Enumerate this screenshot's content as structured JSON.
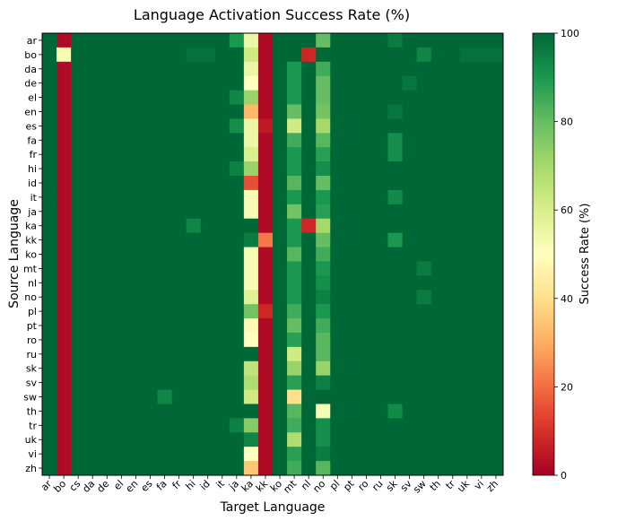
{
  "chart_data": {
    "type": "heatmap",
    "title": "Language Activation Success Rate (%)",
    "xlabel": "Target Language",
    "ylabel": "Source Language",
    "colorbar_label": "Success Rate (%)",
    "colorbar_ticks": [
      0,
      20,
      40,
      60,
      80,
      100
    ],
    "value_range": [
      0,
      100
    ],
    "colormap": "RdYlGn",
    "rows": [
      "ar",
      "bo",
      "da",
      "de",
      "el",
      "en",
      "es",
      "fa",
      "fr",
      "hi",
      "id",
      "it",
      "ja",
      "ka",
      "kk",
      "ko",
      "mt",
      "nl",
      "no",
      "pl",
      "pt",
      "ro",
      "ru",
      "sk",
      "sv",
      "sw",
      "th",
      "tr",
      "uk",
      "vi",
      "zh"
    ],
    "columns": [
      "ar",
      "bo",
      "cs",
      "da",
      "de",
      "el",
      "en",
      "es",
      "fa",
      "fr",
      "hi",
      "id",
      "it",
      "ja",
      "ka",
      "kk",
      "ko",
      "mt",
      "nl",
      "no",
      "pl",
      "pt",
      "ro",
      "ru",
      "sk",
      "sv",
      "sw",
      "th",
      "tr",
      "uk",
      "vi",
      "zh"
    ],
    "default_value": 100,
    "column_defaults": {
      "bo": 2,
      "ka": 50,
      "kk": 2,
      "mt": 90
    },
    "row_overrides": {
      "ar": {
        "bo": 2,
        "ja": 90,
        "ka": 55,
        "kk": 2,
        "mt": 100,
        "no": 80,
        "sk": 96
      },
      "bo": {
        "bo": 52,
        "ka": 62,
        "kk": 2,
        "ko": 100,
        "mt": 100,
        "nl": 8,
        "hi": 98,
        "id": 98,
        "sw": 94,
        "uk": 98,
        "vi": 98,
        "zh": 98
      },
      "da": {
        "ka": 55,
        "kk": 2,
        "no": 85
      },
      "de": {
        "ka": 50,
        "kk": 2,
        "no": 80,
        "sv": 97
      },
      "el": {
        "ja": 94,
        "ka": 72,
        "kk": 2,
        "no": 80
      },
      "en": {
        "ka": 32,
        "kk": 2,
        "mt": 80,
        "no": 78,
        "sk": 97
      },
      "es": {
        "ja": 92,
        "ka": 55,
        "kk": 5,
        "mt": 62,
        "no": 70
      },
      "fa": {
        "ka": 55,
        "kk": 2,
        "mt": 85,
        "no": 82,
        "sk": 92
      },
      "fr": {
        "ka": 60,
        "kk": 2,
        "no": 88,
        "sk": 92
      },
      "hi": {
        "ja": 95,
        "ka": 72,
        "kk": 2,
        "no": 92
      },
      "id": {
        "ka": 15,
        "kk": 2,
        "mt": 82,
        "no": 80
      },
      "it": {
        "ka": 52,
        "kk": 2,
        "no": 90,
        "sk": 93
      },
      "ja": {
        "ka": 52,
        "kk": 2,
        "mt": 78,
        "no": 88
      },
      "ka": {
        "ka": 100,
        "kk": 2,
        "hi": 94,
        "nl": 8,
        "no": 70
      },
      "kk": {
        "ka": 96,
        "kk": 22,
        "no": 80,
        "sk": 90
      },
      "ko": {
        "ka": 52,
        "kk": 2,
        "mt": 82,
        "no": 85
      },
      "mt": {
        "ka": 52,
        "kk": 2,
        "no": 90,
        "sw": 96
      },
      "nl": {
        "ka": 52,
        "kk": 2,
        "no": 92
      },
      "no": {
        "ka": 58,
        "kk": 2,
        "no": 95,
        "sw": 96
      },
      "pl": {
        "ka": 78,
        "kk": 8,
        "mt": 85,
        "no": 90
      },
      "pt": {
        "ka": 48,
        "kk": 2,
        "mt": 80,
        "no": 85
      },
      "ro": {
        "ka": 50,
        "kk": 2,
        "mt": 88,
        "no": 82
      },
      "ru": {
        "ka": 100,
        "kk": 2,
        "mt": 62,
        "no": 82
      },
      "sk": {
        "ka": 65,
        "kk": 2,
        "mt": 72,
        "no": 72
      },
      "sv": {
        "ka": 68,
        "kk": 2,
        "mt": 88,
        "no": 95
      },
      "sw": {
        "ka": 62,
        "kk": 2,
        "mt": 40,
        "no": 100,
        "fa": 94
      },
      "th": {
        "ka": 100,
        "kk": 2,
        "mt": 82,
        "no": 52,
        "sk": 93
      },
      "tr": {
        "ja": 95,
        "ka": 75,
        "kk": 2,
        "mt": 85,
        "no": 92
      },
      "uk": {
        "ka": 94,
        "kk": 2,
        "mt": 68,
        "no": 92
      },
      "vi": {
        "ka": 50,
        "kk": 2,
        "mt": 88,
        "no": 96
      },
      "zh": {
        "ka": 35,
        "kk": 2,
        "mt": 85,
        "no": 82
      }
    }
  }
}
